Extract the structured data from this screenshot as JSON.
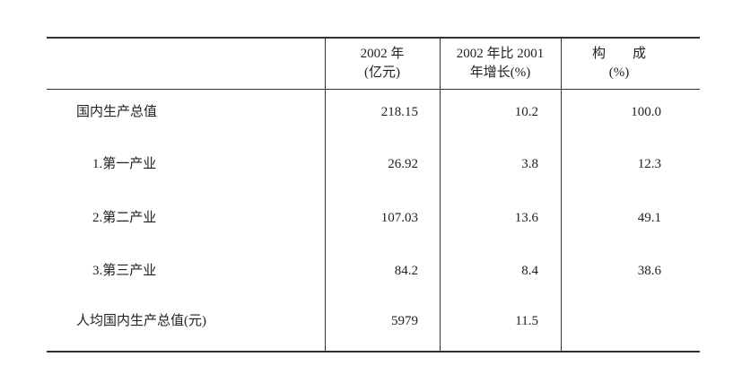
{
  "table": {
    "header": [
      [
        "2002 年",
        "(亿元)"
      ],
      [
        "2002 年比 2001",
        "年增长(%)"
      ],
      [
        "构　　成",
        "(%)"
      ]
    ],
    "rows": [
      [
        "国内生产总值",
        "218.15",
        "10.2",
        "100.0"
      ],
      [
        "1.第一产业",
        "26.92",
        "3.8",
        "12.3"
      ],
      [
        "2.第二产业",
        "107.03",
        "13.6",
        "49.1"
      ],
      [
        "3.第三产业",
        "84.2",
        "8.4",
        "38.6"
      ],
      [
        "人均国内生产总值(元)",
        "5979",
        "11.5"
      ]
    ]
  }
}
